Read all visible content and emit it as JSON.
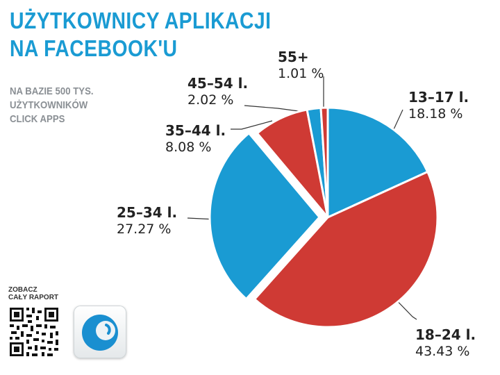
{
  "header": {
    "title_line1": "UŻYTKOWNICY APLIKACJI",
    "title_line2": "NA FACEBOOK'U",
    "subtitle_line1": "NA BAZIE 500 TYS.",
    "subtitle_line2": "UŻYTKOWNIKÓW",
    "subtitle_line3": "CLICK APPS"
  },
  "footer": {
    "qr_caption_line1": "ZOBACZ",
    "qr_caption_line2": "CAŁY RAPORT",
    "qr_icon": "qr-code-icon",
    "app_icon": "click-apps-logo-icon"
  },
  "colors": {
    "blue": "#1a9bd3",
    "red": "#cf3a34",
    "title": "#1a9bd3",
    "subtitle": "#8a8f94"
  },
  "chart_data": {
    "type": "pie",
    "title": "UŻYTKOWNICY APLIKACJI NA FACEBOOK'U",
    "subtitle": "NA BAZIE 500 TYS. UŻYTKOWNIKÓW CLICK APPS",
    "start": "12 o'clock, clockwise",
    "legend": "none",
    "slices": [
      {
        "category": "13–17 l.",
        "value": 18.18,
        "value_label": "18.18 %",
        "color": "#1a9bd3",
        "exploded": false
      },
      {
        "category": "18–24 l.",
        "value": 43.43,
        "value_label": "43.43 %",
        "color": "#cf3a34",
        "exploded": false
      },
      {
        "category": "25–34 l.",
        "value": 27.27,
        "value_label": "27.27 %",
        "color": "#1a9bd3",
        "exploded": true
      },
      {
        "category": "35–44 l.",
        "value": 8.08,
        "value_label": "8.08 %",
        "color": "#cf3a34",
        "exploded": false
      },
      {
        "category": "45–54 l.",
        "value": 2.02,
        "value_label": "2.02 %",
        "color": "#1a9bd3",
        "exploded": false
      },
      {
        "category": "55+",
        "value": 1.01,
        "value_label": "1.01 %",
        "color": "#cf3a34",
        "exploded": false
      }
    ]
  }
}
